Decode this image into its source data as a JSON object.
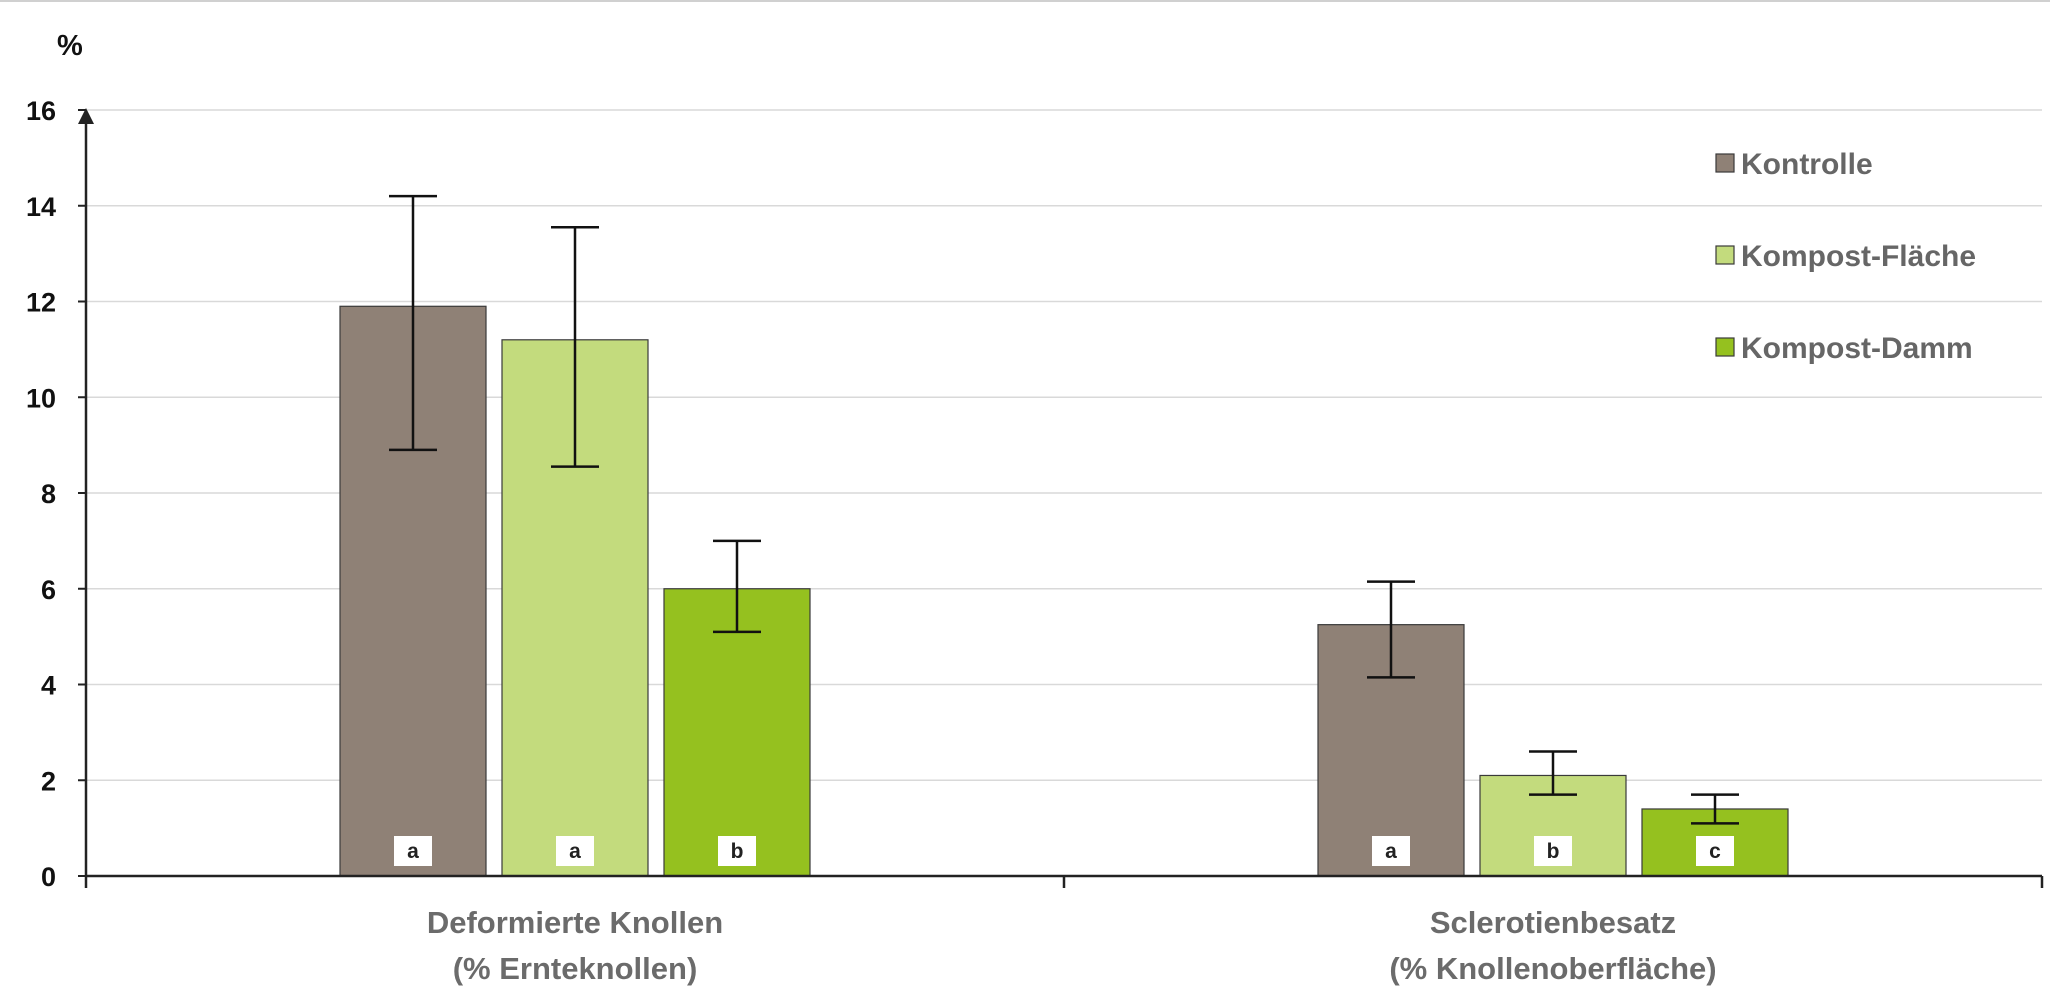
{
  "chart_data": {
    "type": "bar",
    "unit_label": "%",
    "categories": [
      [
        "Deformierte Knollen",
        "(% Ernteknollen)"
      ],
      [
        "Sclerotienbesatz",
        "(% Knollenoberfläche)"
      ]
    ],
    "ylim": [
      0,
      16
    ],
    "yticks": [
      0,
      2,
      4,
      6,
      8,
      10,
      12,
      14,
      16
    ],
    "grid": true,
    "legend_position": "top-right",
    "series": [
      {
        "name": "Kontrolle",
        "color": "#8f8176",
        "values": [
          11.9,
          5.25
        ],
        "err_low": [
          8.9,
          4.15
        ],
        "err_high": [
          14.2,
          6.15
        ],
        "letters": [
          "a",
          "a"
        ]
      },
      {
        "name": "Kompost-Fläche",
        "color": "#c3db7d",
        "values": [
          11.2,
          2.1
        ],
        "err_low": [
          8.55,
          1.7
        ],
        "err_high": [
          13.55,
          2.6
        ],
        "letters": [
          "a",
          "b"
        ]
      },
      {
        "name": "Kompost-Damm",
        "color": "#95c11f",
        "values": [
          6.0,
          1.4
        ],
        "err_low": [
          5.1,
          1.1
        ],
        "err_high": [
          7.0,
          1.7
        ],
        "letters": [
          "b",
          "c"
        ]
      }
    ]
  }
}
